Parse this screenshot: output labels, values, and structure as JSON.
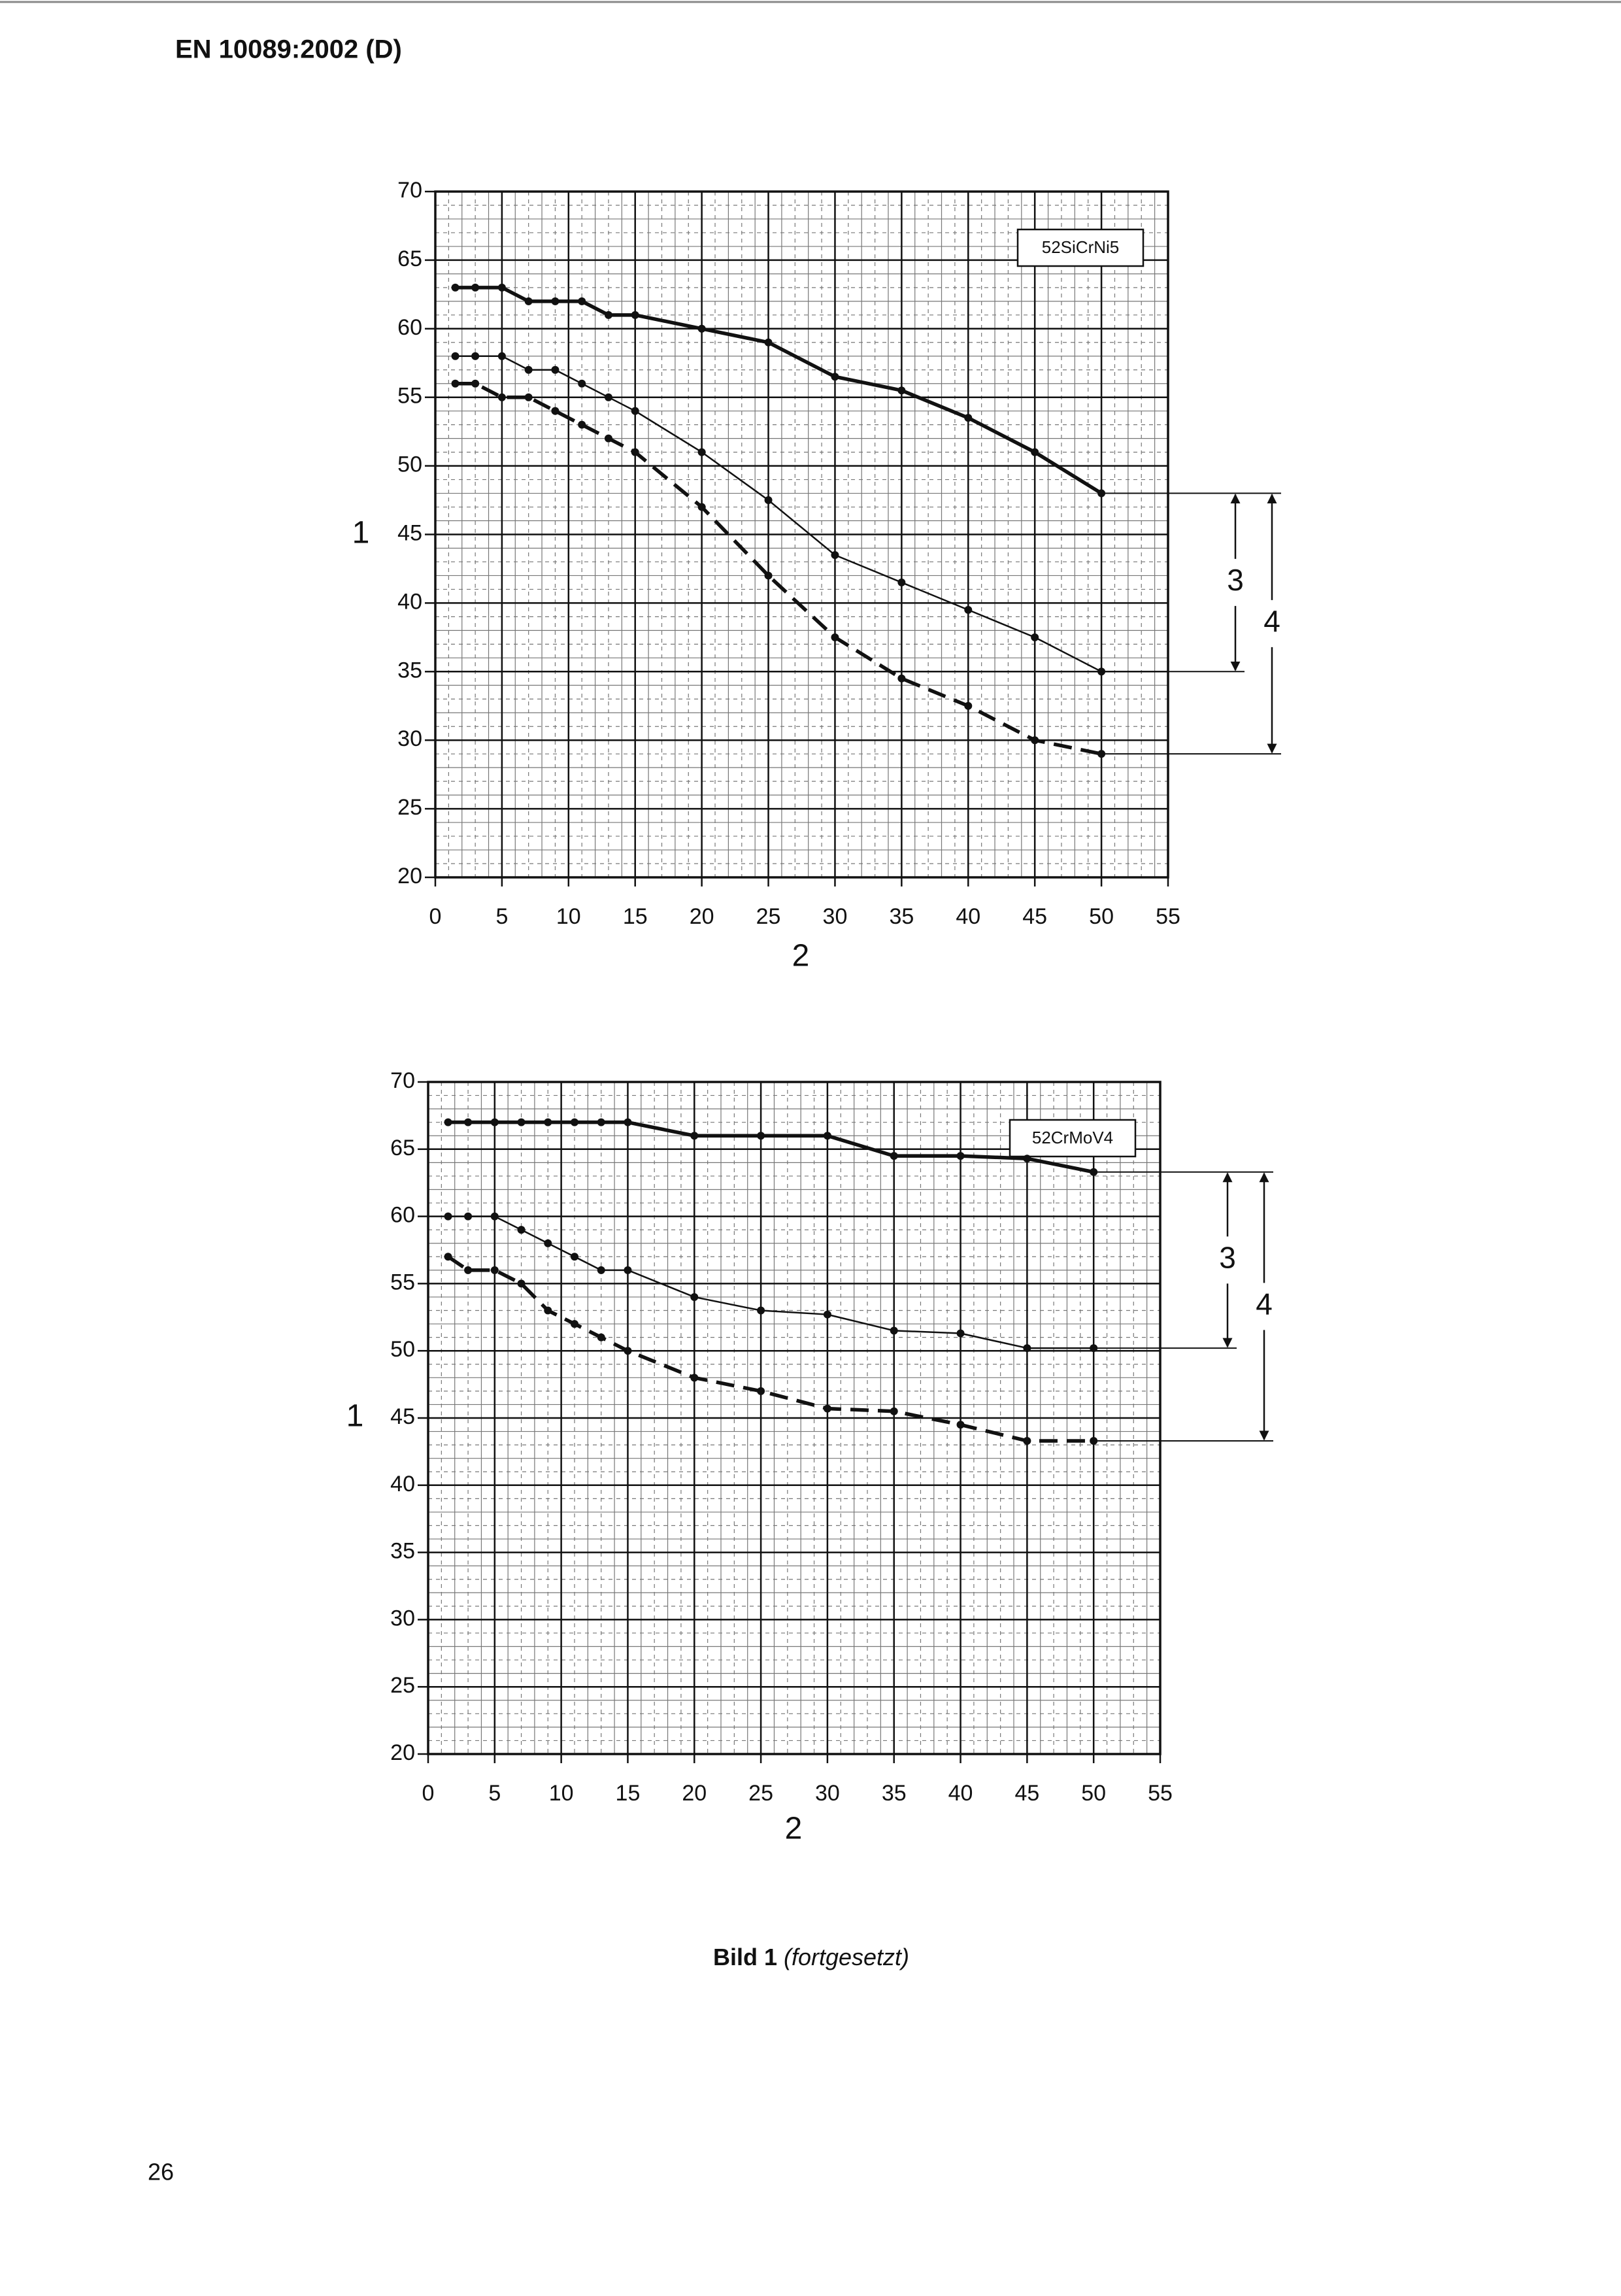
{
  "header": {
    "title": "EN 10089:2002 (D)"
  },
  "chart_data": [
    {
      "type": "line",
      "title": "52SiCrNi5",
      "y_label": "1",
      "x_label": "2",
      "annotations": [
        "3",
        "4"
      ],
      "xlim": [
        0,
        55
      ],
      "ylim": [
        20,
        70
      ],
      "xticks": [
        0,
        5,
        10,
        15,
        20,
        25,
        30,
        35,
        40,
        45,
        50,
        55
      ],
      "yticks": [
        20,
        25,
        30,
        35,
        40,
        45,
        50,
        55,
        60,
        65,
        70
      ],
      "grid": true,
      "x": [
        1.5,
        3,
        5,
        7,
        9,
        11,
        13,
        15,
        20,
        25,
        30,
        35,
        40,
        45,
        50
      ],
      "series": [
        {
          "color": "#111111",
          "style": "bold",
          "values": [
            63,
            63,
            63,
            62,
            62,
            62,
            61,
            61,
            60,
            59,
            56.5,
            55.5,
            53.5,
            51,
            48
          ]
        },
        {
          "color": "#111111",
          "style": "thin",
          "values": [
            58,
            58,
            58,
            57,
            57,
            56,
            55,
            54,
            51,
            47.5,
            43.5,
            41.5,
            39.5,
            37.5,
            35
          ]
        },
        {
          "color": "#111111",
          "style": "dashed",
          "values": [
            56,
            56,
            55,
            55,
            54,
            53,
            52,
            51,
            47,
            42,
            37.5,
            34.5,
            32.5,
            30,
            29
          ]
        }
      ]
    },
    {
      "type": "line",
      "title": "52CrMoV4",
      "y_label": "1",
      "x_label": "2",
      "annotations": [
        "3",
        "4"
      ],
      "xlim": [
        0,
        55
      ],
      "ylim": [
        20,
        70
      ],
      "xticks": [
        0,
        5,
        10,
        15,
        20,
        25,
        30,
        35,
        40,
        45,
        50,
        55
      ],
      "yticks": [
        20,
        25,
        30,
        35,
        40,
        45,
        50,
        55,
        60,
        65,
        70
      ],
      "grid": true,
      "x": [
        1.5,
        3,
        5,
        7,
        9,
        11,
        13,
        15,
        20,
        25,
        30,
        35,
        40,
        45,
        50
      ],
      "series": [
        {
          "color": "#111111",
          "style": "bold",
          "values": [
            67,
            67,
            67,
            67,
            67,
            67,
            67,
            67,
            66,
            66,
            66,
            64.5,
            64.5,
            64.3,
            63.3
          ]
        },
        {
          "color": "#111111",
          "style": "thin",
          "values": [
            60,
            60,
            60,
            59,
            58,
            57,
            56,
            56,
            54,
            53,
            52.7,
            51.5,
            51.3,
            50.2,
            50.2
          ]
        },
        {
          "color": "#111111",
          "style": "dashed",
          "values": [
            57,
            56,
            56,
            55,
            53,
            52,
            51,
            50,
            48,
            47,
            45.7,
            45.5,
            44.5,
            43.3,
            43.3
          ]
        }
      ]
    }
  ],
  "caption": {
    "label": "Bild 1",
    "text": "(fortgesetzt)"
  },
  "footer": {
    "page_number": "26"
  }
}
